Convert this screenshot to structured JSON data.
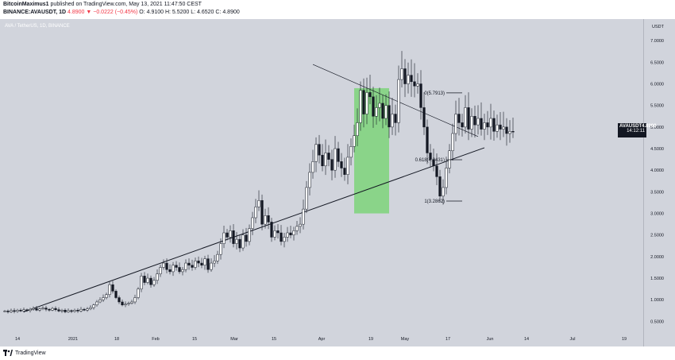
{
  "header": {
    "author": "BitcoinMaximus1",
    "published": "published on TradingView.com, May 13, 2021 11:47:50 CEST",
    "symbol": "BINANCE:AVAUSDT, 1D",
    "price_change": "4.8900 ▼ −0.0222 (−0.45%)",
    "ohlc": "O: 4.9100 H: 5.5200 L: 4.6520 C: 4.8900"
  },
  "pair_label": "AVA / TetherUS, 1D, BINANCE",
  "price_tag": {
    "symbol": "AVAUSDT",
    "price": "4.8900",
    "countdown": "14:12:11"
  },
  "footer": {
    "brand": "TradingView"
  },
  "colors": {
    "background": "#d1d4dc",
    "candle_up": "#ffffff",
    "candle_down": "#131722",
    "highlight": "#7ed37a",
    "line": "#131722"
  },
  "chart_data": {
    "type": "candlestick",
    "price_axis": {
      "unit": "USDT",
      "labels": [
        "7.0000",
        "6.5000",
        "6.0000",
        "5.5000",
        "5.0000",
        "4.5000",
        "4.0000",
        "3.5000",
        "3.0000",
        "2.5000",
        "2.0000",
        "1.5000",
        "1.0000",
        "0.5000"
      ],
      "ylim": [
        0.25,
        7.5
      ]
    },
    "time_axis": {
      "labels": [
        "14",
        "2021",
        "18",
        "Feb",
        "15",
        "Mar",
        "15",
        "Apr",
        "19",
        "May",
        "17",
        "Jun",
        "14",
        "Jul",
        "19"
      ]
    },
    "fib_levels": [
      {
        "label": "0(5.7913)",
        "value": 5.7913
      },
      {
        "label": "0.618(4.2431)",
        "value": 4.2431
      },
      {
        "label": "1(3.2862)",
        "value": 3.2862
      }
    ],
    "trendlines": [
      {
        "name": "ascending support",
        "from": [
          "2021-01-08",
          0.72
        ],
        "to": [
          "2021-06-02",
          4.52
        ]
      },
      {
        "name": "descending resistance",
        "from": [
          "2021-04-09",
          6.45
        ],
        "to": [
          "2021-05-31",
          4.78
        ]
      }
    ],
    "highlight_zone": {
      "from": "2021-04-22",
      "to": "2021-05-03",
      "low": 3.0,
      "high": 5.9
    },
    "last_price": 4.89,
    "closes": [
      0.74,
      0.72,
      0.75,
      0.73,
      0.76,
      0.74,
      0.77,
      0.75,
      0.78,
      0.8,
      0.76,
      0.79,
      0.81,
      0.78,
      0.76,
      0.8,
      0.77,
      0.74,
      0.76,
      0.72,
      0.75,
      0.73,
      0.76,
      0.74,
      0.78,
      0.76,
      0.79,
      0.82,
      0.88,
      0.95,
      1.0,
      1.05,
      1.12,
      1.35,
      1.2,
      1.05,
      0.95,
      0.88,
      0.9,
      0.92,
      0.95,
      1.05,
      1.25,
      1.55,
      1.4,
      1.5,
      1.35,
      1.45,
      1.6,
      1.75,
      1.85,
      1.7,
      1.65,
      1.8,
      1.75,
      1.65,
      1.7,
      1.85,
      1.8,
      1.75,
      1.9,
      1.85,
      1.8,
      1.95,
      1.7,
      1.85,
      1.9,
      2.05,
      2.3,
      2.55,
      2.45,
      2.6,
      2.3,
      2.4,
      2.2,
      2.5,
      2.35,
      2.65,
      2.9,
      3.15,
      3.3,
      2.75,
      2.95,
      2.8,
      2.45,
      2.6,
      2.55,
      2.35,
      2.45,
      2.55,
      2.5,
      2.6,
      2.7,
      2.75,
      3.1,
      3.6,
      3.95,
      4.2,
      4.6,
      4.35,
      4.1,
      4.4,
      4.25,
      4.0,
      4.5,
      4.2,
      4.05,
      3.9,
      4.3,
      4.55,
      4.8,
      5.1,
      5.85,
      5.3,
      5.8,
      5.7,
      5.25,
      5.45,
      5.55,
      5.2,
      5.5,
      5.0,
      5.3,
      5.1,
      6.1,
      6.35,
      6.0,
      6.2,
      6.05,
      5.95,
      6.0,
      5.45,
      5.0,
      4.4,
      4.25,
      4.1,
      3.85,
      3.4,
      3.6,
      4.05,
      4.45,
      4.85,
      5.3,
      5.1,
      5.0,
      5.45,
      4.95,
      5.25,
      5.05,
      5.2,
      4.95,
      5.1,
      5.0,
      5.2,
      4.9,
      5.05,
      4.95,
      5.0,
      4.85,
      4.9,
      4.89
    ]
  }
}
